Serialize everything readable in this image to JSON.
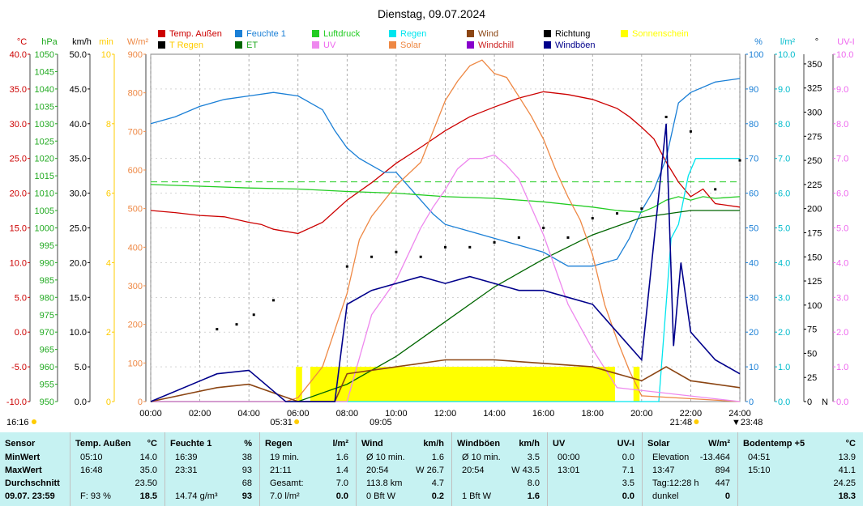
{
  "title": "Dienstag, 09.07.2024",
  "legend": [
    {
      "label": "Temp. Außen",
      "color": "#cc0000"
    },
    {
      "label": "Feuchte 1",
      "color": "#1a7fd6"
    },
    {
      "label": "Luftdruck",
      "color": "#22cc22"
    },
    {
      "label": "Regen",
      "color": "#00e5ee"
    },
    {
      "label": "Wind",
      "color": "#8b4513"
    },
    {
      "label": "Richtung",
      "color": "#000000"
    },
    {
      "label": "Sonnenschein",
      "color": "#ffff00"
    },
    {
      "label": "T Regen",
      "color": "#000000"
    },
    {
      "label": "ET",
      "color": "#006600"
    },
    {
      "label": "UV",
      "color": "#ee88ee"
    },
    {
      "label": "Solar",
      "color": "#ee8844"
    },
    {
      "label": "Windchill",
      "color": "#8800cc"
    },
    {
      "label": "Windböen",
      "color": "#00008b"
    }
  ],
  "legend_text_colors": [
    "#cc0000",
    "#1a7fd6",
    "#22cc22",
    "#00e5ee",
    "#8b4513",
    "#000000",
    "#ffff00",
    "#ffcc00",
    "#22aa22",
    "#ee66ee",
    "#ee8844",
    "#cc2222",
    "#00008b"
  ],
  "chart_data": {
    "type": "line",
    "title": "Dienstag, 09.07.2024",
    "x_ticks": [
      "00:00",
      "02:00",
      "04:00",
      "06:00",
      "08:00",
      "10:00",
      "12:00",
      "14:00",
      "16:00",
      "18:00",
      "20:00",
      "22:00",
      "24:00"
    ],
    "sun_markers": [
      "05:31",
      "21:48"
    ],
    "extra_markers": [
      "16:16",
      "09:05",
      "23:48"
    ],
    "axes_left": [
      {
        "unit": "°C",
        "color": "#cc0000",
        "range": [
          -10,
          40
        ],
        "ticks": [
          "40.0",
          "35.0",
          "30.0",
          "25.0",
          "20.0",
          "15.0",
          "10.0",
          "5.0",
          "0.0",
          "-5.0",
          "-10.0"
        ]
      },
      {
        "unit": "hPa",
        "color": "#22aa22",
        "range": [
          950,
          1050
        ],
        "ticks": [
          "1050",
          "1045",
          "1040",
          "1035",
          "1030",
          "1025",
          "1020",
          "1015",
          "1010",
          "1005",
          "1000",
          "995",
          "990",
          "985",
          "980",
          "975",
          "970",
          "965",
          "960",
          "955",
          "950"
        ]
      },
      {
        "unit": "km/h",
        "color": "#000000",
        "range": [
          0,
          50
        ],
        "ticks": [
          "50.0",
          "45.0",
          "40.0",
          "35.0",
          "30.0",
          "25.0",
          "20.0",
          "15.0",
          "10.0",
          "5.0",
          "0.0"
        ]
      },
      {
        "unit": "min",
        "color": "#ffcc00",
        "range": [
          0,
          10
        ],
        "ticks": [
          "10",
          "8",
          "6",
          "4",
          "2",
          "0"
        ]
      },
      {
        "unit": "W/m²",
        "color": "#ee8844",
        "range": [
          0,
          900
        ],
        "ticks": [
          "900",
          "800",
          "700",
          "600",
          "500",
          "400",
          "300",
          "200",
          "100",
          "0"
        ]
      }
    ],
    "axes_right": [
      {
        "unit": "%",
        "color": "#1a7fd6",
        "range": [
          0,
          100
        ],
        "ticks": [
          "100",
          "90",
          "80",
          "70",
          "60",
          "50",
          "40",
          "30",
          "20",
          "10",
          "0"
        ]
      },
      {
        "unit": "l/m²",
        "color": "#00bbcc",
        "range": [
          0,
          10
        ],
        "ticks": [
          "10.0",
          "9.0",
          "8.0",
          "7.0",
          "6.0",
          "5.0",
          "4.0",
          "3.0",
          "2.0",
          "1.0",
          "0.0"
        ]
      },
      {
        "unit": "°",
        "color": "#000000",
        "range": [
          0,
          360
        ],
        "ticks": [
          "350",
          "325",
          "300",
          "275",
          "250",
          "225",
          "200",
          "175",
          "150",
          "125",
          "100",
          "75",
          "50",
          "25",
          "0"
        ],
        "bottom_label": "N"
      },
      {
        "unit": "UV-I",
        "color": "#ee66ee",
        "range": [
          0,
          10
        ],
        "ticks": [
          "10.0",
          "9.0",
          "8.0",
          "7.0",
          "6.0",
          "5.0",
          "4.0",
          "3.0",
          "2.0",
          "1.0",
          "0.0"
        ]
      }
    ],
    "series": [
      {
        "name": "Temp. Außen",
        "unit": "°C",
        "color": "#cc0000",
        "x": [
          0,
          1,
          2,
          3,
          4,
          4.5,
          5,
          5.5,
          6,
          7,
          8,
          9,
          10,
          11,
          12,
          13,
          14,
          15,
          16,
          17,
          18,
          19,
          19.5,
          20,
          20.5,
          21,
          21.5,
          22,
          22.5,
          23,
          24
        ],
        "y": [
          17.5,
          17.2,
          16.8,
          16.6,
          15.8,
          15.5,
          14.8,
          14.5,
          14.2,
          15.8,
          19.0,
          21.5,
          24.3,
          26.6,
          29.0,
          31.0,
          32.4,
          33.7,
          34.6,
          34.2,
          33.5,
          32.2,
          31.0,
          29.5,
          27.8,
          24.5,
          21.6,
          19.5,
          20.6,
          18.5,
          18.0
        ]
      },
      {
        "name": "Feuchte 1",
        "unit": "%",
        "color": "#1a7fd6",
        "x": [
          0,
          1,
          2,
          3,
          4,
          5,
          6,
          7,
          7.5,
          8,
          8.5,
          9,
          9.5,
          10,
          11,
          11.5,
          12,
          13,
          14,
          15,
          16,
          17,
          18,
          19,
          19.5,
          20,
          20.5,
          21,
          21.5,
          22,
          23,
          24
        ],
        "y": [
          80,
          82,
          85,
          87,
          88,
          89,
          88,
          84,
          78,
          73,
          70,
          68,
          66,
          66,
          58,
          54,
          51,
          49,
          47,
          45,
          43,
          39,
          39,
          41,
          47,
          55,
          61,
          70,
          86,
          89,
          92,
          93
        ]
      },
      {
        "name": "Luftdruck",
        "unit": "hPa",
        "color": "#22cc22",
        "x": [
          0,
          2,
          4,
          6,
          8,
          10,
          12,
          14,
          16,
          18,
          19,
          20,
          20.5,
          21,
          21.5,
          22,
          22.5,
          23,
          24
        ],
        "y": [
          1012.5,
          1012,
          1011.5,
          1011.2,
          1010.5,
          1010,
          1009,
          1008.5,
          1007.5,
          1006,
          1005,
          1004.5,
          1006,
          1008,
          1009,
          1008,
          1009,
          1008.5,
          1009
        ]
      },
      {
        "name": "Regen",
        "unit": "l/m²",
        "color": "#00e5ee",
        "x": [
          0,
          20,
          20.7,
          21.2,
          21.5,
          21.9,
          22.2,
          22.5,
          24
        ],
        "y": [
          0,
          0,
          0,
          4.7,
          5.1,
          6.5,
          7.0,
          7.0,
          7.0
        ]
      },
      {
        "name": "ET",
        "unit": "l/m²",
        "color": "#006600",
        "x": [
          0,
          6,
          8,
          10,
          12,
          14,
          16,
          18,
          20,
          22,
          24
        ],
        "y": [
          0,
          0,
          0.5,
          1.3,
          2.3,
          3.3,
          4.1,
          4.8,
          5.3,
          5.5,
          5.5
        ]
      },
      {
        "name": "Solar",
        "unit": "W/m²",
        "color": "#ee8844",
        "x": [
          0,
          5.5,
          6,
          7,
          8,
          8.5,
          9,
          10,
          11,
          11.5,
          12,
          12.5,
          13,
          13.5,
          14,
          14.5,
          15,
          15.5,
          16,
          16.5,
          17,
          17.5,
          18,
          18.5,
          19,
          19.5,
          20,
          24
        ],
        "y": [
          0,
          0,
          10,
          90,
          280,
          420,
          480,
          560,
          620,
          700,
          780,
          830,
          870,
          885,
          850,
          840,
          790,
          740,
          680,
          600,
          530,
          470,
          380,
          250,
          160,
          80,
          15,
          0
        ]
      },
      {
        "name": "UV",
        "unit": "UV-I",
        "color": "#ee88ee",
        "x": [
          0,
          8,
          9,
          10,
          11,
          11.5,
          12,
          12.5,
          13,
          13.5,
          14,
          14.5,
          15,
          15.5,
          16,
          16.5,
          17,
          18,
          19,
          24
        ],
        "y": [
          0,
          0,
          2.5,
          3.5,
          5.0,
          5.6,
          6.1,
          6.7,
          7.0,
          7.0,
          7.1,
          6.8,
          6.4,
          5.6,
          4.8,
          3.8,
          2.8,
          1.5,
          0.4,
          0
        ]
      },
      {
        "name": "Wind",
        "unit": "km/h",
        "color": "#8b4513",
        "x": [
          0,
          2.7,
          4,
          6,
          7.5,
          8,
          10,
          12,
          14,
          16,
          18,
          19,
          20,
          20.5,
          21,
          22,
          24
        ],
        "y": [
          0,
          2,
          2.5,
          0,
          0,
          4,
          5,
          6,
          6,
          5.5,
          5,
          4,
          3,
          4,
          5,
          3,
          2
        ]
      },
      {
        "name": "Windböen",
        "unit": "km/h",
        "color": "#00008b",
        "x": [
          0,
          2.7,
          4,
          5.5,
          6,
          7.5,
          8,
          9,
          10,
          11,
          12,
          13,
          14,
          15,
          16,
          17,
          18,
          19,
          20,
          21,
          21.3,
          21.6,
          22,
          23,
          24
        ],
        "y": [
          0,
          4,
          4.5,
          0,
          0,
          0,
          14,
          16,
          17,
          18,
          17,
          18,
          17,
          16,
          16,
          15,
          14,
          10,
          6,
          40,
          8,
          20,
          10,
          6,
          4
        ]
      },
      {
        "name": "Richtung",
        "unit": "°",
        "color": "#000000",
        "x": [
          2.7,
          3.5,
          4.2,
          5,
          8,
          9,
          10,
          11,
          12,
          13,
          14,
          15,
          16,
          17,
          18,
          19,
          20,
          21,
          22,
          23,
          24
        ],
        "y": [
          75,
          80,
          90,
          105,
          140,
          150,
          155,
          150,
          160,
          160,
          165,
          170,
          180,
          170,
          190,
          195,
          200,
          295,
          280,
          220,
          250
        ]
      }
    ],
    "sunshine": [
      {
        "from": "05:55",
        "to": "06:10"
      },
      {
        "from": "06:30",
        "to": "18:55"
      },
      {
        "from": "19:40",
        "to": "19:55"
      }
    ],
    "dashed_reference": {
      "axis": "hPa",
      "value": 1013.25
    }
  },
  "summary": {
    "row_labels": [
      "Sensor",
      "MinWert",
      "MaxWert",
      "Durchschnitt",
      "09.07. 23:59"
    ],
    "sections": [
      {
        "name": "Temp. Außen",
        "unit": "°C",
        "rows": [
          [
            "05:10",
            "14.0"
          ],
          [
            "16:48",
            "35.0"
          ],
          [
            "",
            "23.50"
          ],
          [
            "F: 93 %",
            "18.5"
          ]
        ]
      },
      {
        "name": "Feuchte 1",
        "unit": "%",
        "rows": [
          [
            "16:39",
            "38"
          ],
          [
            "23:31",
            "93"
          ],
          [
            "",
            "68"
          ],
          [
            "14.74 g/m³",
            "93"
          ]
        ]
      },
      {
        "name": "Regen",
        "unit": "l/m²",
        "rows": [
          [
            "19 min.",
            "1.6"
          ],
          [
            "21:11",
            "1.4"
          ],
          [
            "Gesamt:",
            "7.0"
          ],
          [
            "7.0 l/m²",
            "0.0"
          ]
        ]
      },
      {
        "name": "Wind",
        "unit": "km/h",
        "rows": [
          [
            "Ø 10 min.",
            "1.6"
          ],
          [
            "20:54",
            "W 26.7"
          ],
          [
            "113.8 km",
            "4.7"
          ],
          [
            "0 Bft W",
            "0.2"
          ]
        ]
      },
      {
        "name": "Windböen",
        "unit": "km/h",
        "rows": [
          [
            "Ø 10 min.",
            "3.5"
          ],
          [
            "20:54",
            "W 43.5"
          ],
          [
            "",
            "8.0"
          ],
          [
            "1 Bft W",
            "1.6"
          ]
        ]
      },
      {
        "name": "UV",
        "unit": "UV-I",
        "rows": [
          [
            "00:00",
            "0.0"
          ],
          [
            "13:01",
            "7.1"
          ],
          [
            "",
            "3.5"
          ],
          [
            "",
            "0.0"
          ]
        ]
      },
      {
        "name": "Solar",
        "unit": "W/m²",
        "rows": [
          [
            "Elevation",
            "-13.464"
          ],
          [
            "13:47",
            "894"
          ],
          [
            "Tag:12:28 h",
            "447"
          ],
          [
            "dunkel",
            "0"
          ]
        ]
      },
      {
        "name": "Bodentemp +5",
        "unit": "°C",
        "rows": [
          [
            "04:51",
            "13.9"
          ],
          [
            "15:10",
            "41.1"
          ],
          [
            "",
            "24.25"
          ],
          [
            "",
            "18.3"
          ]
        ]
      }
    ]
  }
}
